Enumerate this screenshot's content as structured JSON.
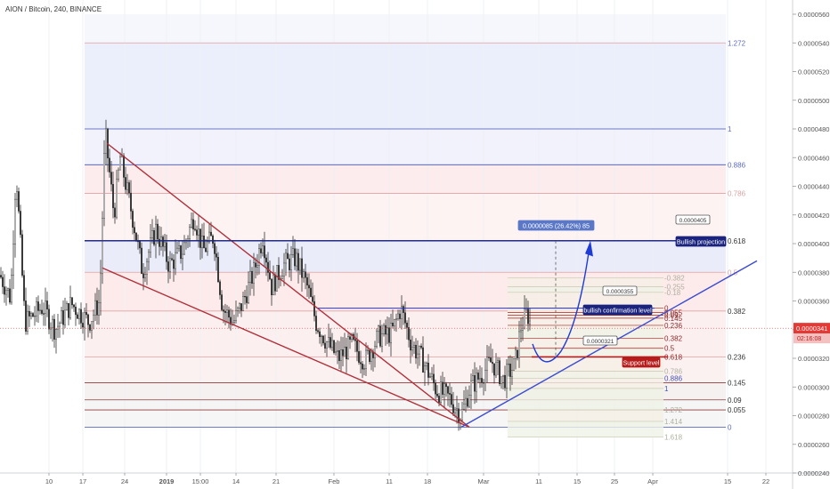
{
  "header": {
    "title": "AION / Bitcoin, 240, BINANCE"
  },
  "colors": {
    "up": "#26a69a",
    "down": "#ef5350",
    "candle": "#333333",
    "fib": "#7b8bd8",
    "channel": "#b0303a",
    "trend": "#3a4bd0",
    "projection": "#1f3bd6",
    "support": "#b71c1c",
    "price": "#e53935"
  },
  "chart_data": {
    "type": "candlestick",
    "symbol": "AION / Bitcoin",
    "interval": "240",
    "exchange": "BINANCE",
    "y_ticks": [
      "0.0000560",
      "0.0000540",
      "0.0000520",
      "0.0000500",
      "0.0000480",
      "0.0000460",
      "0.0000440",
      "0.0000420",
      "0.0000400",
      "0.0000380",
      "0.0000360",
      "0.0000340",
      "0.0000320",
      "0.0000300",
      "0.0000280",
      "0.0000260",
      "0.0000240"
    ],
    "x_ticks": [
      "10",
      "17",
      "24",
      "2019",
      "15:00",
      "14",
      "21",
      "Feb",
      "11",
      "18",
      "Mar",
      "11",
      "15",
      "25",
      "Apr",
      "15",
      "22"
    ],
    "current_price": "0.0000341",
    "countdown": "02:16:08",
    "fib_main": [
      {
        "level": "1.272",
        "price": 5.4e-05
      },
      {
        "level": "1",
        "price": 4.8e-05
      },
      {
        "level": "0.886",
        "price": 4.55e-05
      },
      {
        "level": "0.786",
        "price": 4.35e-05
      },
      {
        "level": "0.618",
        "price": 4.02e-05
      },
      {
        "level": "0.5",
        "price": 3.8e-05
      },
      {
        "level": "0.382",
        "price": 3.53e-05
      },
      {
        "level": "0.236",
        "price": 3.21e-05
      },
      {
        "level": "0.145",
        "price": 3.03e-05
      },
      {
        "level": "0.09",
        "price": 2.91e-05
      },
      {
        "level": "0.055",
        "price": 2.84e-05
      },
      {
        "level": "0",
        "price": 2.72e-05
      }
    ],
    "fib_small": [
      {
        "level": "-0.382",
        "price": 3.76e-05
      },
      {
        "level": "-0.255",
        "price": 3.7e-05
      },
      {
        "level": "-0.18",
        "price": 3.66e-05
      },
      {
        "level": "0",
        "price": 3.55e-05
      },
      {
        "level": "0.055",
        "price": 3.52e-05
      },
      {
        "level": "0.09",
        "price": 3.5e-05
      },
      {
        "level": "0.145",
        "price": 3.48e-05
      },
      {
        "level": "0.236",
        "price": 3.43e-05
      },
      {
        "level": "0.382",
        "price": 3.34e-05
      },
      {
        "level": "0.5",
        "price": 3.27e-05
      },
      {
        "level": "0.618",
        "price": 3.21e-05
      },
      {
        "level": "0.786",
        "price": 3.11e-05
      },
      {
        "level": "0.886",
        "price": 3.06e-05
      },
      {
        "level": "1",
        "price": 2.99e-05
      },
      {
        "level": "1.272",
        "price": 2.84e-05
      },
      {
        "level": "1.414",
        "price": 2.76e-05
      },
      {
        "level": "1.618",
        "price": 2.65e-05
      }
    ],
    "annotations": {
      "measure": "0.0000085 (26.42%) 85",
      "target_price": "0.0000405",
      "bullish_projection": "Bullish projection",
      "confirmation_price": "0.0000355",
      "bullish_confirmation": "bullish confirmation level",
      "support_price": "0.0000321",
      "support_level": "Support level"
    }
  }
}
